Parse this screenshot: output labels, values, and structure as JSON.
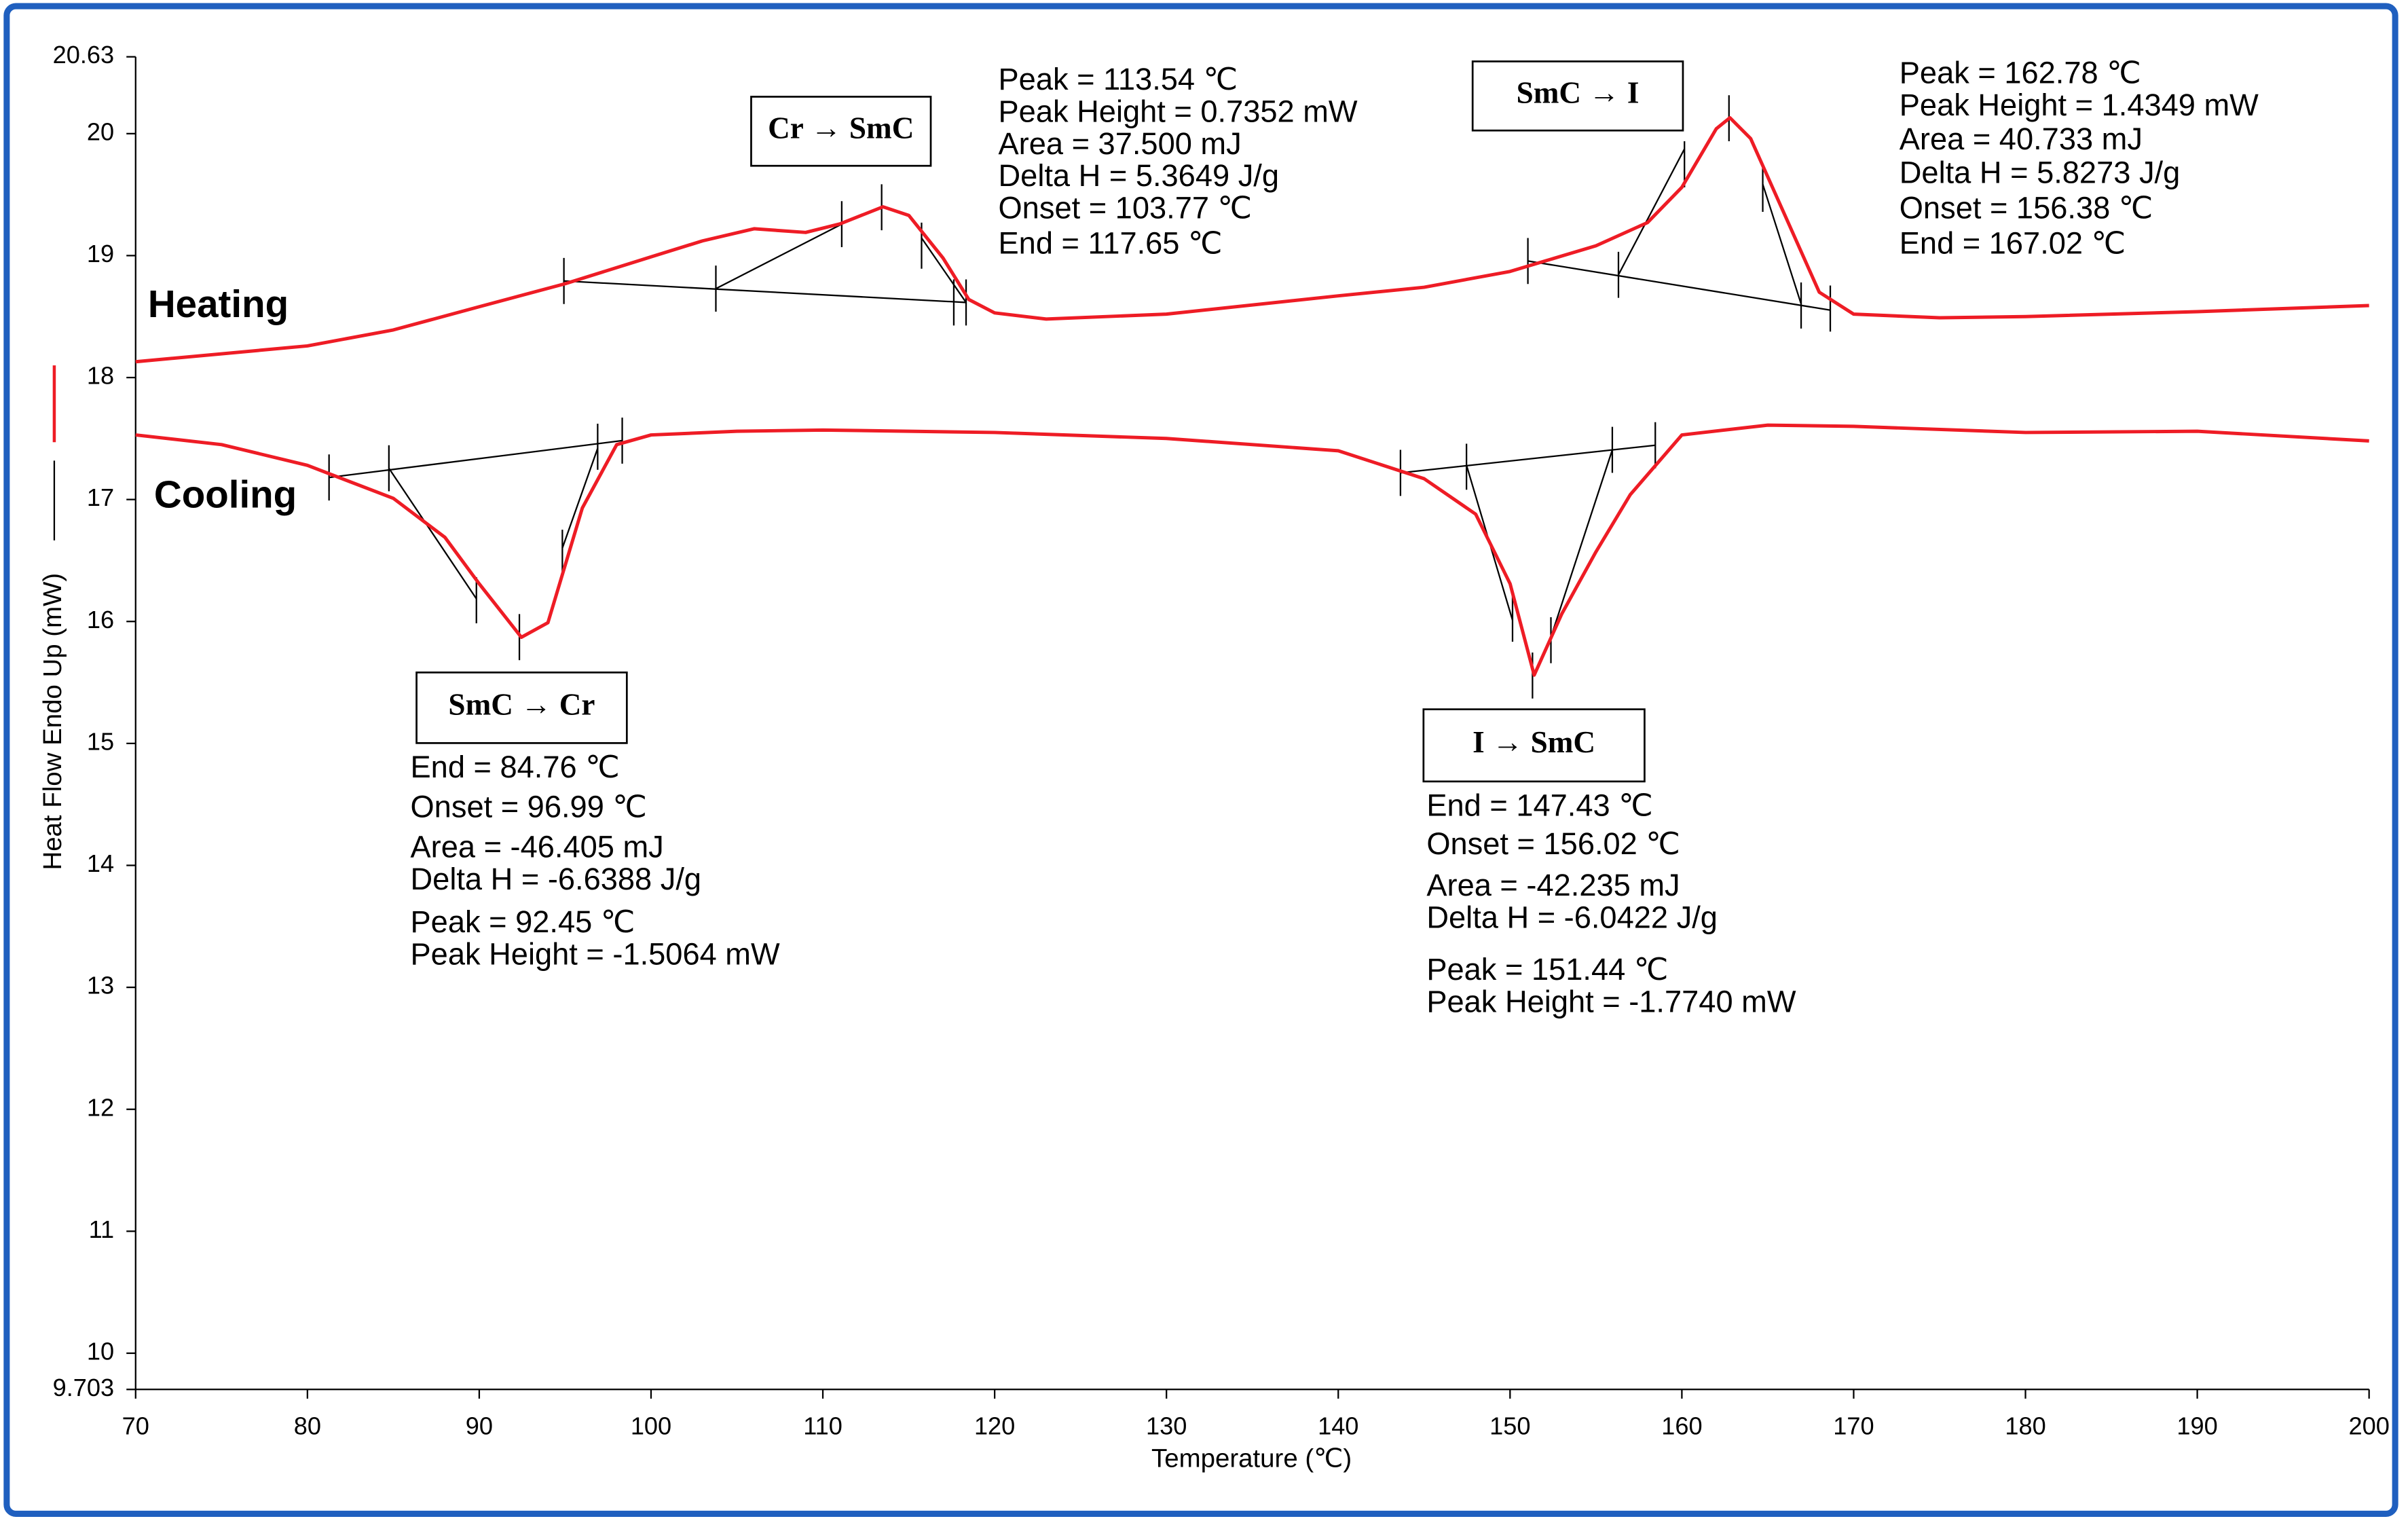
{
  "chart_data": {
    "type": "line",
    "x_label": "Temperature (℃)",
    "y_label": "Heat Flow Endo Up (mW)",
    "xlim": [
      70,
      200
    ],
    "xticks": [
      70,
      80,
      90,
      100,
      110,
      120,
      130,
      140,
      150,
      160,
      170,
      180,
      190,
      200
    ],
    "ylim": [
      9.703,
      20.63
    ],
    "yticks": [
      9.703,
      10,
      11,
      12,
      13,
      14,
      15,
      16,
      17,
      18,
      19,
      20,
      20.63
    ],
    "series": [
      {
        "name": "Heating",
        "color": "#ee1c25",
        "x": [
          70,
          80,
          85,
          90,
          95,
          100,
          103,
          106,
          109,
          111,
          113.5,
          115,
          117,
          118.5,
          120,
          123,
          130,
          140,
          145,
          150,
          155,
          158,
          160,
          162,
          162.8,
          164,
          166,
          168,
          170,
          175,
          180,
          190,
          200
        ],
        "values": [
          18.13,
          18.26,
          18.39,
          18.58,
          18.77,
          18.99,
          19.12,
          19.22,
          19.19,
          19.26,
          19.4,
          19.33,
          18.98,
          18.64,
          18.53,
          18.48,
          18.52,
          18.67,
          18.74,
          18.87,
          19.08,
          19.27,
          19.56,
          20.04,
          20.13,
          19.96,
          19.33,
          18.7,
          18.52,
          18.49,
          18.5,
          18.54,
          18.59
        ]
      },
      {
        "name": "Cooling",
        "color": "#ee1c25",
        "x": [
          70,
          75,
          80,
          85,
          88,
          90,
          92.45,
          94,
          96,
          98,
          100,
          105,
          110,
          120,
          130,
          140,
          145,
          148,
          150,
          151.4,
          153,
          155,
          157,
          160,
          165,
          170,
          180,
          190,
          200
        ],
        "values": [
          17.53,
          17.45,
          17.28,
          17.01,
          16.69,
          16.31,
          15.87,
          15.99,
          16.93,
          17.45,
          17.53,
          17.56,
          17.57,
          17.55,
          17.5,
          17.4,
          17.17,
          16.88,
          16.31,
          15.56,
          16.06,
          16.57,
          17.04,
          17.53,
          17.61,
          17.6,
          17.55,
          17.56,
          17.48
        ]
      }
    ],
    "annotations": [
      {
        "box": "Cr → SmC",
        "lines": [
          "Peak = 113.54 ℃",
          "Peak Height = 0.7352 mW",
          "Area = 37.500 mJ",
          "Delta H = 5.3649 J/g",
          "Onset = 103.77 ℃",
          "End = 117.65 ℃"
        ]
      },
      {
        "box": "SmC → I",
        "lines": [
          "Peak = 162.78 ℃",
          "Peak Height = 1.4349 mW",
          "Area = 40.733 mJ",
          "Delta H = 5.8273 J/g",
          "Onset = 156.38 ℃",
          "End = 167.02 ℃"
        ]
      },
      {
        "box": "SmC → Cr",
        "lines": [
          "End = 84.76 ℃",
          "Onset = 96.99 ℃",
          "Area = -46.405 mJ",
          "Delta H = -6.6388 J/g",
          "Peak = 92.45 ℃",
          "Peak Height = -1.5064 mW"
        ]
      },
      {
        "box": "I → SmC",
        "lines": [
          "End = 147.43 ℃",
          "Onset = 156.02 ℃",
          "Area = -42.235 mJ",
          "Delta H = -6.0422 J/g",
          "Peak = 151.44 ℃",
          "Peak Height = -1.7740 mW"
        ]
      }
    ]
  }
}
